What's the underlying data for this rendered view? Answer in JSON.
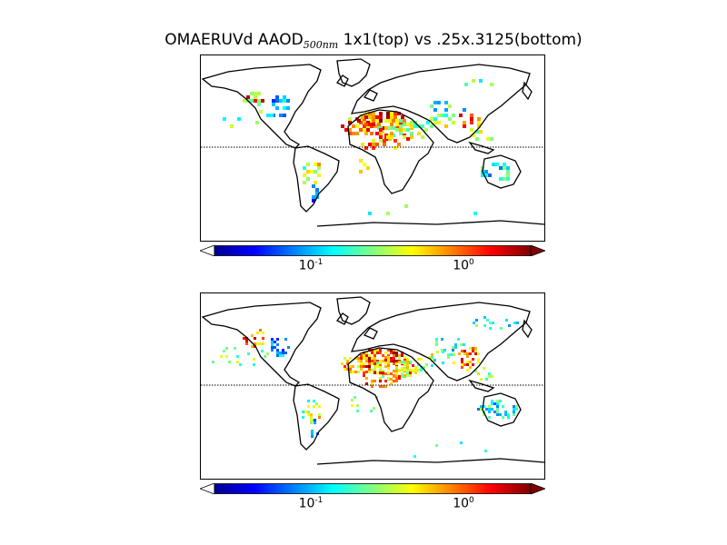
{
  "figure": {
    "title_main": "OMAERUVd AAOD",
    "title_sub": "500nm",
    "title_rest": " 1x1(top) vs .25x.3125(bottom)"
  },
  "colorbar": {
    "colormap": "jet",
    "scale": "log",
    "extend": "both",
    "ticks": [
      {
        "base": "10",
        "exp": "-1",
        "value": 0.1
      },
      {
        "base": "10",
        "exp": "0",
        "value": 1.0
      }
    ]
  },
  "panels": [
    {
      "label": "top",
      "grid": "1x1"
    },
    {
      "label": "bottom",
      "grid": ".25x.3125"
    }
  ],
  "map": {
    "projection": "cylindrical",
    "equator_line": "dotted",
    "coastlines_color": "#000000"
  },
  "colors": {
    "jet": [
      "#00008f",
      "#0000ff",
      "#0080ff",
      "#00ffff",
      "#80ff80",
      "#ffff00",
      "#ff8000",
      "#ff0000",
      "#800000"
    ]
  }
}
